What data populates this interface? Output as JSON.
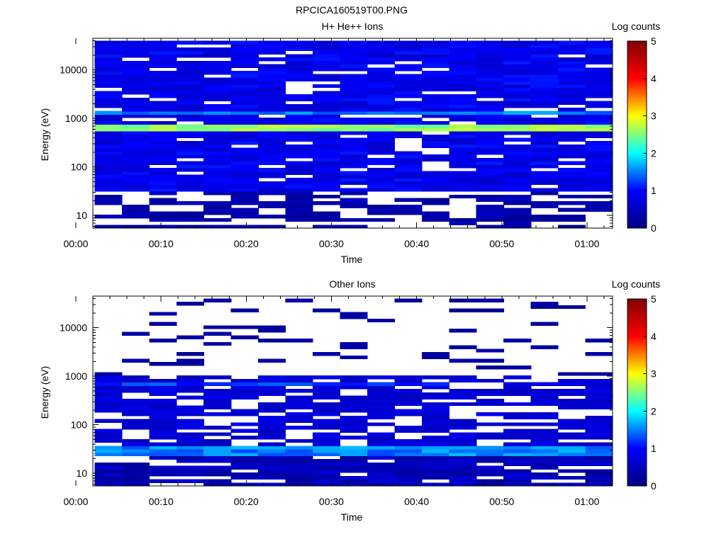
{
  "title": "RPCICA160519T00.PNG",
  "colorscale": {
    "stops": [
      "#000080",
      "#0000ff",
      "#00ffff",
      "#ffff00",
      "#ff0000",
      "#800000"
    ],
    "range": [
      0,
      5
    ],
    "ticks": [
      "0",
      "1",
      "2",
      "3",
      "4",
      "5"
    ]
  },
  "chart_data": [
    {
      "type": "heatmap",
      "panel_title": "H+ He++ Ions",
      "xlabel": "Time",
      "ylabel": "Energy (eV)",
      "colorbar_label": "Log counts",
      "y_scale": "log",
      "x_range_min": [
        2,
        63
      ],
      "y_range_ev": [
        5.5,
        45000
      ],
      "x_ticks": [
        "00:00",
        "00:10",
        "00:20",
        "00:30",
        "00:40",
        "00:50",
        "01:00"
      ],
      "x_tick_values_min": [
        0,
        10,
        20,
        30,
        40,
        50,
        60
      ],
      "y_ticks": [
        "10",
        "100",
        "1000",
        "10000"
      ],
      "y_tick_values_ev": [
        10,
        100,
        1000,
        10000
      ],
      "time_bins_min": [
        2.2,
        5.4,
        8.6,
        11.8,
        15.0,
        18.2,
        21.4,
        24.6,
        27.8,
        31.0,
        34.2,
        37.4,
        40.6,
        43.8,
        47.0,
        50.2,
        53.4,
        56.6,
        59.8,
        63.0
      ],
      "bright_band_ev": [
        550,
        800
      ],
      "bright_band_log_counts": 2.6,
      "secondary_band_ev": 1400,
      "secondary_band_log_counts": 1.5,
      "background_log_counts": 0.6,
      "low_energy_cutoff_ev": 30
    },
    {
      "type": "heatmap",
      "panel_title": "Other Ions",
      "xlabel": "Time",
      "ylabel": "Energy (eV)",
      "colorbar_label": "Log counts",
      "y_scale": "log",
      "x_range_min": [
        2,
        63
      ],
      "y_range_ev": [
        5.5,
        45000
      ],
      "x_ticks": [
        "00:00",
        "00:10",
        "00:20",
        "00:30",
        "00:40",
        "00:50",
        "01:00"
      ],
      "x_tick_values_min": [
        0,
        10,
        20,
        30,
        40,
        50,
        60
      ],
      "y_ticks": [
        "10",
        "100",
        "1000",
        "10000"
      ],
      "y_tick_values_ev": [
        10,
        100,
        1000,
        10000
      ],
      "time_bins_min": [
        2.2,
        5.4,
        8.6,
        11.8,
        15.0,
        18.2,
        21.4,
        24.6,
        27.8,
        31.0,
        34.2,
        37.4,
        40.6,
        43.8,
        47.0,
        50.2,
        53.4,
        56.6,
        59.8,
        63.0
      ],
      "bright_band_ev": [
        22,
        35
      ],
      "bright_band_log_counts": 1.5,
      "secondary_band_ev": 700,
      "secondary_band_log_counts": 1.2,
      "background_log_counts": 0.5,
      "sparse_above_ev": 1000
    }
  ]
}
